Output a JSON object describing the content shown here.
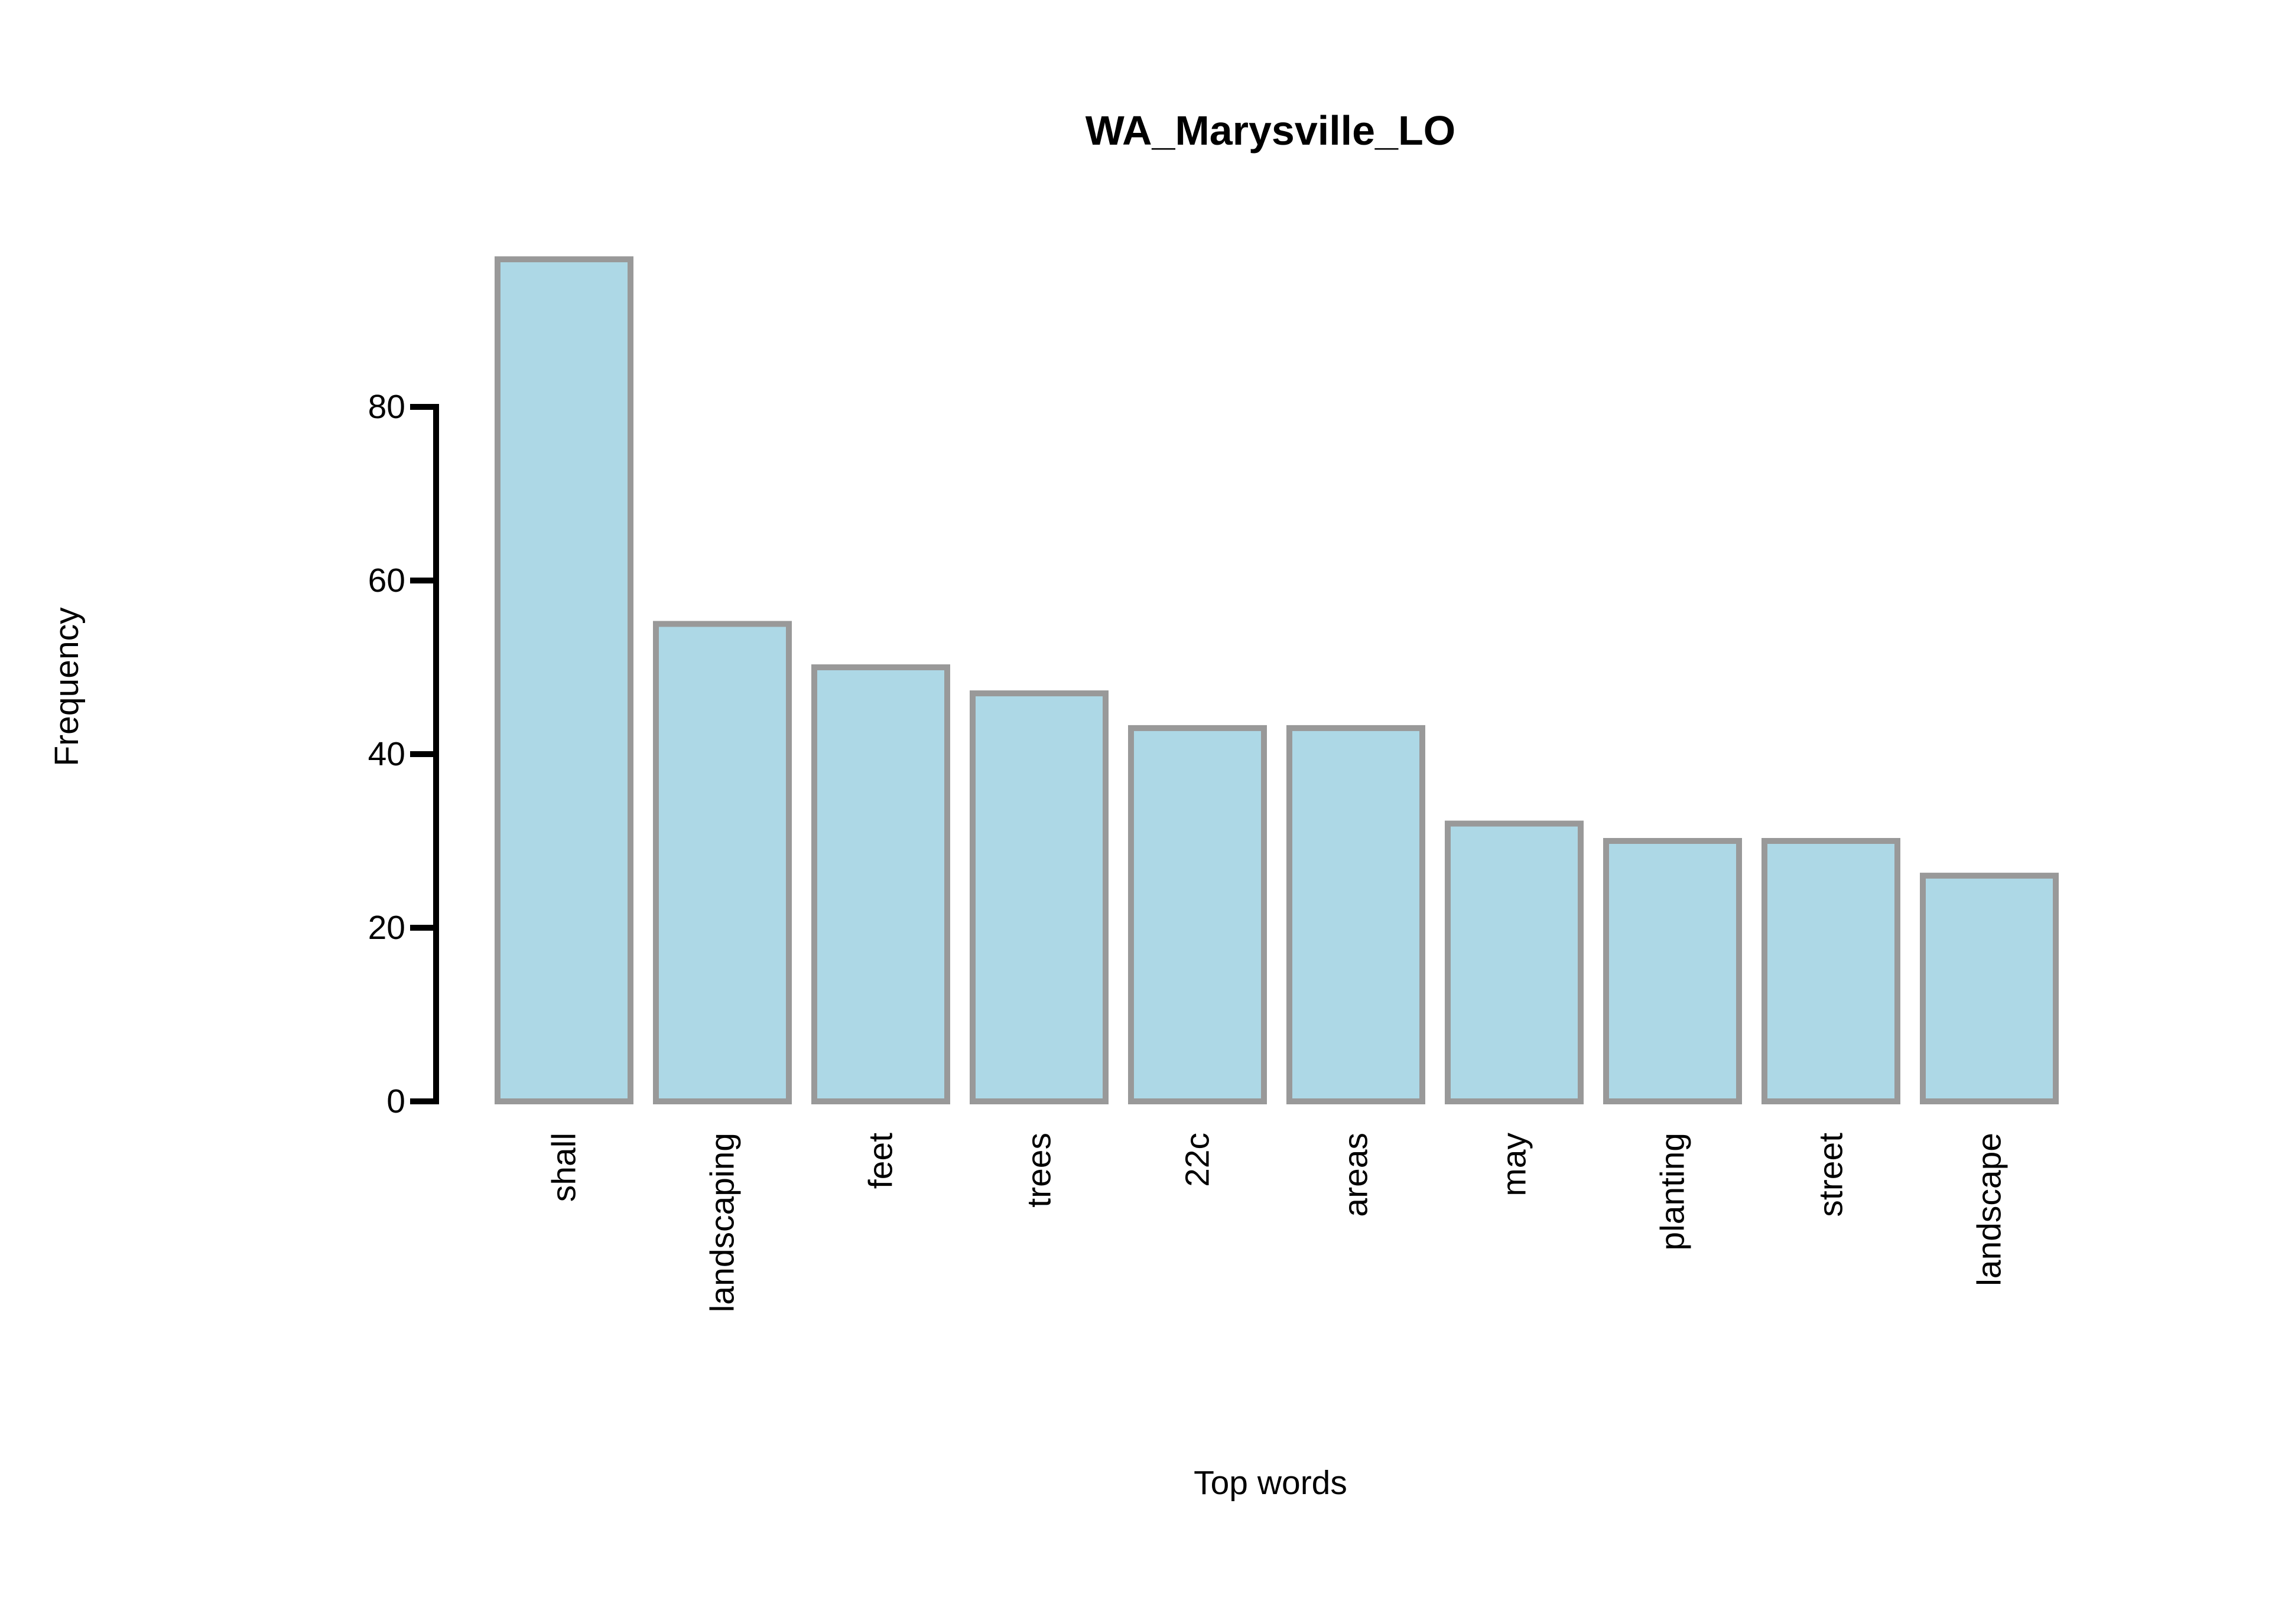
{
  "chart_data": {
    "type": "bar",
    "title": "WA_Marysville_LO",
    "xlabel": "Top words",
    "ylabel": "Frequency",
    "categories": [
      "shall",
      "landscaping",
      "feet",
      "trees",
      "22c",
      "areas",
      "may",
      "planting",
      "street",
      "landscape"
    ],
    "values": [
      97,
      55,
      50,
      47,
      43,
      43,
      32,
      30,
      30,
      26
    ],
    "yticks": [
      0,
      20,
      40,
      60,
      80
    ],
    "ylim": [
      0,
      97
    ],
    "grid": false,
    "legend": "none",
    "colors": {
      "bar_fill": "#add8e6",
      "bar_stroke": "#999999",
      "axis": "#000000"
    }
  }
}
